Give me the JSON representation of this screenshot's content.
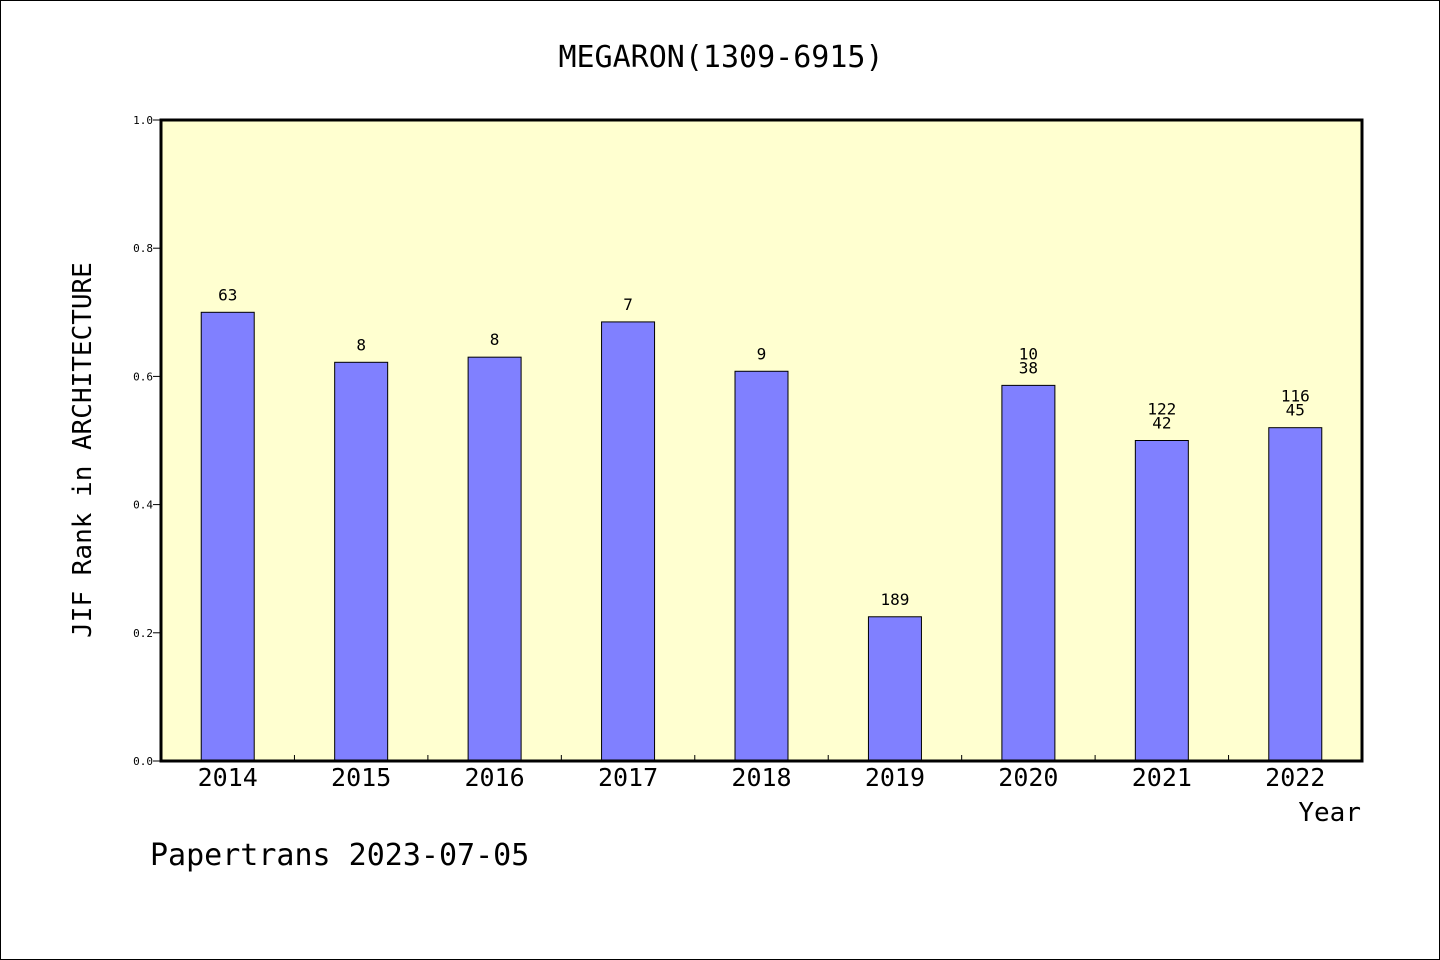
{
  "chart_data": {
    "type": "bar",
    "title": "MEGARON(1309-6915)",
    "xlabel": "Year",
    "ylabel": "JIF Rank in ARCHITECTURE",
    "ylim": [
      0,
      1.0
    ],
    "yticks": [
      "0.0",
      "0.2",
      "0.4",
      "0.6",
      "0.8",
      "1.0"
    ],
    "categories": [
      "2014",
      "2015",
      "2016",
      "2017",
      "2018",
      "2019",
      "2020",
      "2021",
      "2022"
    ],
    "values": [
      0.7,
      0.622,
      0.63,
      0.685,
      0.608,
      0.225,
      0.586,
      0.5,
      0.52
    ],
    "bar_labels": [
      [
        "63"
      ],
      [
        "8"
      ],
      [
        "8"
      ],
      [
        "7"
      ],
      [
        "9"
      ],
      [
        "189"
      ],
      [
        "10",
        "38"
      ],
      [
        "122",
        "42"
      ],
      [
        "116",
        "45"
      ]
    ],
    "legend": "none",
    "grid": false,
    "colors": {
      "plot_background": "#ffffd0",
      "bar_fill": "#8080ff",
      "bar_stroke": "#000000"
    }
  },
  "footer": "Papertrans 2023-07-05"
}
